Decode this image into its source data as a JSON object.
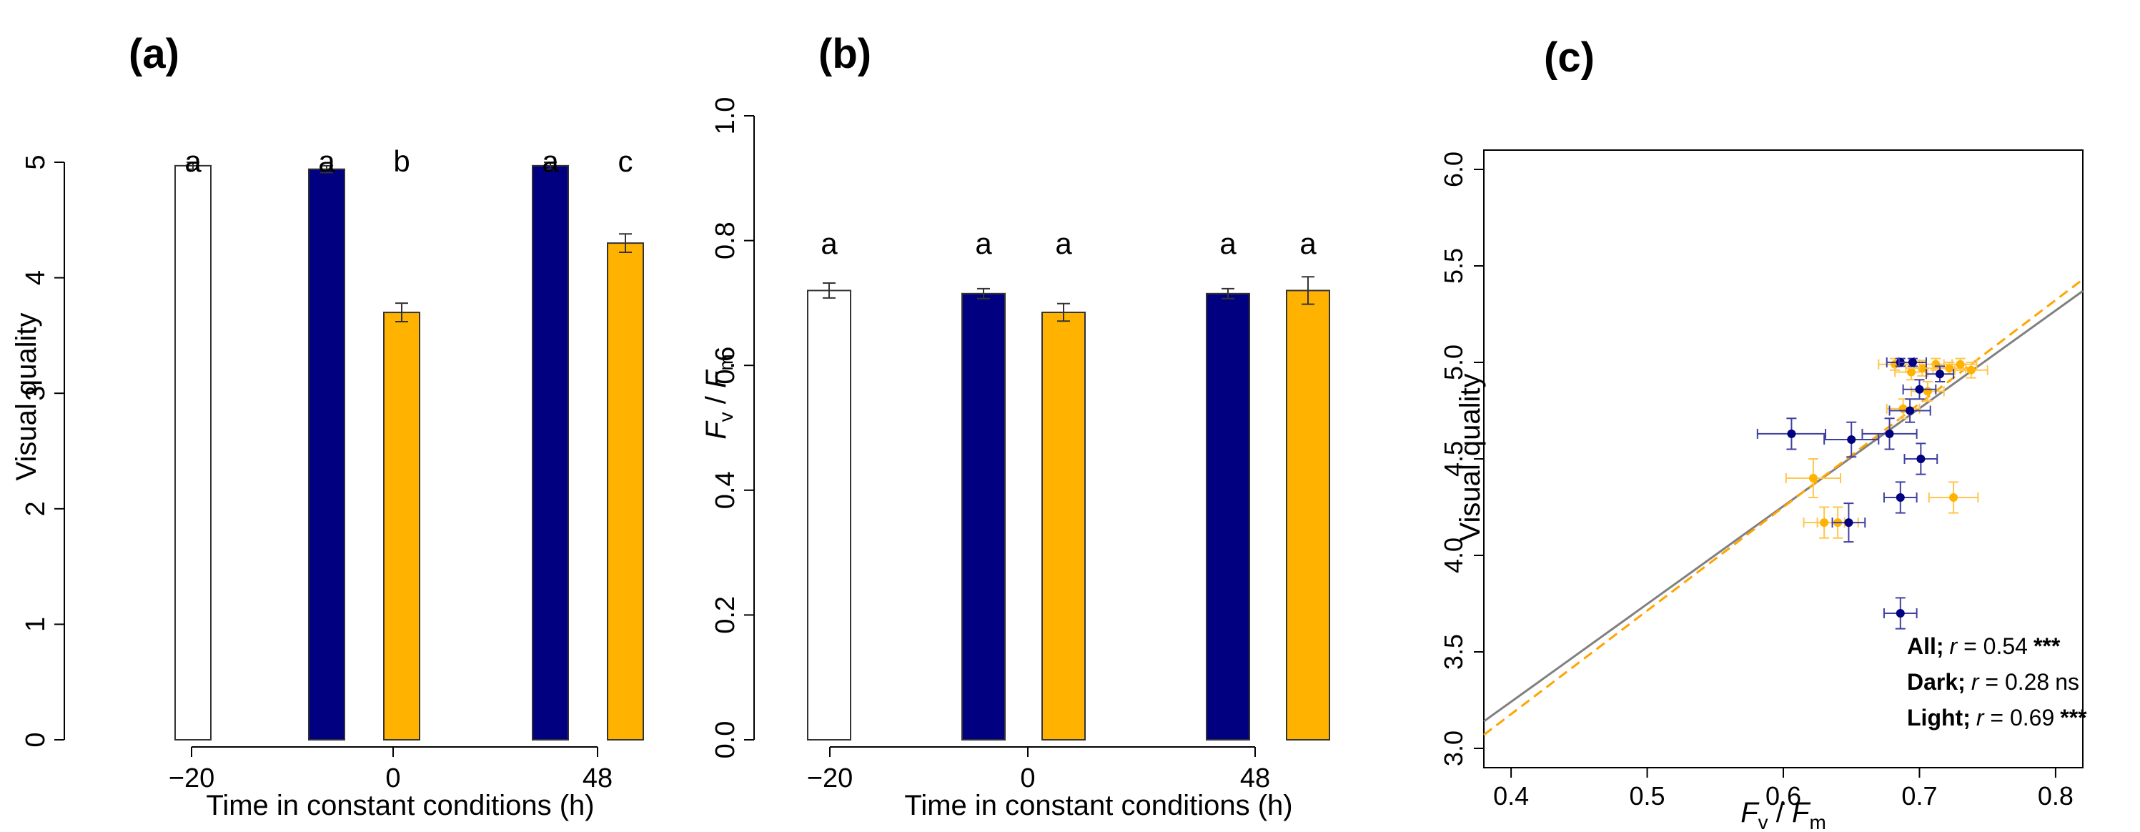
{
  "colors": {
    "control": "#ffffff",
    "dark": "#000080",
    "light": "#ffb300",
    "axis": "#000000",
    "fit_all": "#808080",
    "fit_light": "#ffa500"
  },
  "chart_data": [
    {
      "panel": "(a)",
      "type": "bar",
      "xlabel": "Time in constant conditions (h)",
      "ylabel": "Visual quality",
      "ylim": [
        0,
        5
      ],
      "yticks": [
        0,
        1,
        2,
        3,
        4,
        5
      ],
      "xticks": [
        "−20",
        "0",
        "48"
      ],
      "bars": [
        {
          "group": "−20",
          "treatment": "control",
          "value": 4.97,
          "err": 0.03,
          "letter": "a"
        },
        {
          "group": "0",
          "treatment": "dark",
          "value": 4.94,
          "err": 0.03,
          "letter": "a"
        },
        {
          "group": "0",
          "treatment": "light",
          "value": 3.7,
          "err": 0.08,
          "letter": "b"
        },
        {
          "group": "48",
          "treatment": "dark",
          "value": 4.97,
          "err": 0.03,
          "letter": "a"
        },
        {
          "group": "48",
          "treatment": "light",
          "value": 4.3,
          "err": 0.08,
          "letter": "c"
        }
      ]
    },
    {
      "panel": "(b)",
      "type": "bar",
      "xlabel": "Time in constant conditions (h)",
      "ylabel_main": "F",
      "ylabel_sub1": "v",
      "ylabel_sep": " / ",
      "ylabel_sub2": "m",
      "ylim": [
        0,
        1
      ],
      "yticks": [
        "0.0",
        "0.2",
        "0.4",
        "0.6",
        "0.8",
        "1.0"
      ],
      "xticks": [
        "−20",
        "0",
        "48"
      ],
      "bars": [
        {
          "group": "−20",
          "treatment": "control",
          "value": 0.72,
          "err": 0.012,
          "letter": "a"
        },
        {
          "group": "0",
          "treatment": "dark",
          "value": 0.715,
          "err": 0.008,
          "letter": "a"
        },
        {
          "group": "0",
          "treatment": "light",
          "value": 0.685,
          "err": 0.014,
          "letter": "a"
        },
        {
          "group": "48",
          "treatment": "dark",
          "value": 0.715,
          "err": 0.008,
          "letter": "a"
        },
        {
          "group": "48",
          "treatment": "light",
          "value": 0.72,
          "err": 0.022,
          "letter": "a"
        }
      ]
    },
    {
      "panel": "(c)",
      "type": "scatter",
      "xlabel_main": "F",
      "xlabel_sub1": "v",
      "xlabel_sep": " / ",
      "xlabel_sub2": "m",
      "ylabel": "Visual quality",
      "xlim": [
        0.38,
        0.82
      ],
      "ylim": [
        2.9,
        6.1
      ],
      "xticks": [
        "0.4",
        "0.5",
        "0.6",
        "0.7",
        "0.8"
      ],
      "yticks": [
        "3.0",
        "3.5",
        "4.0",
        "4.5",
        "5.0",
        "5.5",
        "6.0"
      ],
      "series": [
        {
          "treatment": "light",
          "points": [
            {
              "x": 0.682,
              "y": 4.99,
              "xe": 0.012,
              "ye": 0.03
            },
            {
              "x": 0.694,
              "y": 4.95,
              "xe": 0.012,
              "ye": 0.04
            },
            {
              "x": 0.702,
              "y": 4.97,
              "xe": 0.012,
              "ye": 0.04
            },
            {
              "x": 0.712,
              "y": 4.99,
              "xe": 0.012,
              "ye": 0.03
            },
            {
              "x": 0.722,
              "y": 4.97,
              "xe": 0.012,
              "ye": 0.03
            },
            {
              "x": 0.73,
              "y": 4.99,
              "xe": 0.012,
              "ye": 0.03
            },
            {
              "x": 0.738,
              "y": 4.96,
              "xe": 0.012,
              "ye": 0.04
            },
            {
              "x": 0.706,
              "y": 4.85,
              "xe": 0.012,
              "ye": 0.05
            },
            {
              "x": 0.688,
              "y": 4.76,
              "xe": 0.012,
              "ye": 0.05
            },
            {
              "x": 0.622,
              "y": 4.4,
              "xe": 0.02,
              "ye": 0.1
            },
            {
              "x": 0.64,
              "y": 4.17,
              "xe": 0.015,
              "ye": 0.08
            },
            {
              "x": 0.63,
              "y": 4.17,
              "xe": 0.015,
              "ye": 0.08
            },
            {
              "x": 0.725,
              "y": 4.3,
              "xe": 0.018,
              "ye": 0.08
            }
          ]
        },
        {
          "treatment": "dark",
          "points": [
            {
              "x": 0.686,
              "y": 5.0,
              "xe": 0.01,
              "ye": 0.02
            },
            {
              "x": 0.695,
              "y": 5.0,
              "xe": 0.01,
              "ye": 0.02
            },
            {
              "x": 0.7,
              "y": 4.86,
              "xe": 0.012,
              "ye": 0.05
            },
            {
              "x": 0.715,
              "y": 4.94,
              "xe": 0.01,
              "ye": 0.04
            },
            {
              "x": 0.693,
              "y": 4.75,
              "xe": 0.015,
              "ye": 0.06
            },
            {
              "x": 0.606,
              "y": 4.63,
              "xe": 0.025,
              "ye": 0.08
            },
            {
              "x": 0.65,
              "y": 4.6,
              "xe": 0.02,
              "ye": 0.09
            },
            {
              "x": 0.678,
              "y": 4.63,
              "xe": 0.02,
              "ye": 0.08
            },
            {
              "x": 0.701,
              "y": 4.5,
              "xe": 0.012,
              "ye": 0.08
            },
            {
              "x": 0.686,
              "y": 4.3,
              "xe": 0.012,
              "ye": 0.08
            },
            {
              "x": 0.648,
              "y": 4.17,
              "xe": 0.012,
              "ye": 0.1
            },
            {
              "x": 0.686,
              "y": 3.7,
              "xe": 0.012,
              "ye": 0.08
            }
          ]
        }
      ],
      "fits": [
        {
          "treatment": "all",
          "style": "solid",
          "x1": 0.38,
          "y1": 3.14,
          "x2": 0.82,
          "y2": 5.37
        },
        {
          "treatment": "light",
          "style": "dashed",
          "x1": 0.38,
          "y1": 3.07,
          "x2": 0.82,
          "y2": 5.43
        }
      ],
      "stats": [
        {
          "group": "All",
          "r": "0.54",
          "sig": "***"
        },
        {
          "group": "Dark",
          "r": "0.28",
          "sig": "ns"
        },
        {
          "group": "Light",
          "r": "0.69",
          "sig": "***"
        }
      ],
      "stats_r_label": "r",
      "stats_eq": " = ",
      "stats_sep": ";"
    }
  ]
}
